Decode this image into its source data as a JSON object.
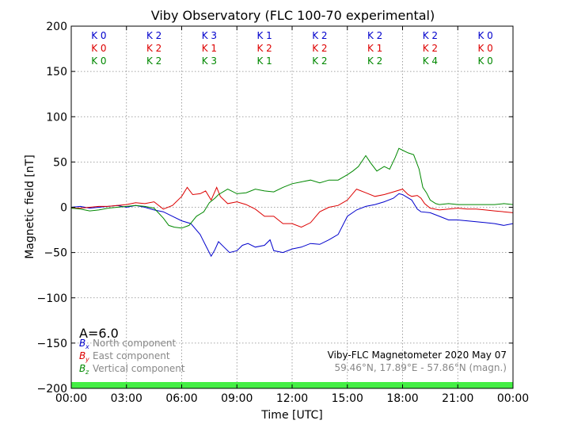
{
  "chart_data": {
    "type": "line",
    "title": "Viby Observatory (FLC 100-70 experimental)",
    "xlabel": "Time [UTC]",
    "ylabel": "Magnetic field [nT]",
    "xlim": [
      0,
      24
    ],
    "ylim": [
      -200,
      200
    ],
    "grid": true,
    "x_ticks": [
      {
        "value": 0,
        "label": "00:00"
      },
      {
        "value": 3,
        "label": "03:00"
      },
      {
        "value": 6,
        "label": "06:00"
      },
      {
        "value": 9,
        "label": "09:00"
      },
      {
        "value": 12,
        "label": "12:00"
      },
      {
        "value": 15,
        "label": "15:00"
      },
      {
        "value": 18,
        "label": "18:00"
      },
      {
        "value": 21,
        "label": "21:00"
      },
      {
        "value": 24,
        "label": "00:00"
      }
    ],
    "y_ticks": [
      {
        "value": 200,
        "label": "200"
      },
      {
        "value": 150,
        "label": "150"
      },
      {
        "value": 100,
        "label": "100"
      },
      {
        "value": 50,
        "label": "50"
      },
      {
        "value": 0,
        "label": "0"
      },
      {
        "value": -50,
        "label": "−50"
      },
      {
        "value": -100,
        "label": "−100"
      },
      {
        "value": -150,
        "label": "−150"
      },
      {
        "value": -200,
        "label": "−200"
      }
    ],
    "k_index_rows": [
      {
        "color": "#0000cc",
        "values": [
          "K 0",
          "K 2",
          "K 3",
          "K 1",
          "K 2",
          "K 2",
          "K 2",
          "K 0"
        ]
      },
      {
        "color": "#dd0000",
        "values": [
          "K 0",
          "K 2",
          "K 1",
          "K 2",
          "K 2",
          "K 1",
          "K 2",
          "K 0"
        ]
      },
      {
        "color": "#008800",
        "values": [
          "K 0",
          "K 2",
          "K 3",
          "K 1",
          "K 2",
          "K 2",
          "K 4",
          "K 0"
        ]
      }
    ],
    "a_index": "A=6.0",
    "legend": {
      "position": "bottom-left",
      "entries": [
        {
          "symbol": "B",
          "sub": "x",
          "text": "North component",
          "color": "#0000cc"
        },
        {
          "symbol": "B",
          "sub": "y",
          "text": "East component",
          "color": "#dd0000"
        },
        {
          "symbol": "B",
          "sub": "z",
          "text": "Vertical component",
          "color": "#008800"
        }
      ]
    },
    "annotation": {
      "line1": "Viby-FLC Magnetometer 2020 May 07",
      "line2": "59.46°N, 17.89°E - 57.86°N (magn.)"
    },
    "status_bar_color": "#44ee44",
    "series": [
      {
        "name": "North component",
        "color": "#0000cc",
        "points": [
          [
            0,
            0
          ],
          [
            0.5,
            1
          ],
          [
            1,
            -1
          ],
          [
            1.5,
            0
          ],
          [
            2,
            1
          ],
          [
            2.5,
            2
          ],
          [
            3,
            0
          ],
          [
            3.5,
            2
          ],
          [
            4,
            0
          ],
          [
            4.5,
            -3
          ],
          [
            5,
            -5
          ],
          [
            5.5,
            -10
          ],
          [
            6,
            -15
          ],
          [
            6.5,
            -18
          ],
          [
            7,
            -30
          ],
          [
            7.3,
            -42
          ],
          [
            7.6,
            -54
          ],
          [
            7.8,
            -47
          ],
          [
            8,
            -38
          ],
          [
            8.3,
            -44
          ],
          [
            8.6,
            -50
          ],
          [
            9,
            -48
          ],
          [
            9.3,
            -42
          ],
          [
            9.6,
            -40
          ],
          [
            10,
            -44
          ],
          [
            10.5,
            -42
          ],
          [
            10.8,
            -36
          ],
          [
            11,
            -48
          ],
          [
            11.5,
            -50
          ],
          [
            12,
            -46
          ],
          [
            12.5,
            -44
          ],
          [
            13,
            -40
          ],
          [
            13.5,
            -41
          ],
          [
            14,
            -36
          ],
          [
            14.5,
            -30
          ],
          [
            15,
            -10
          ],
          [
            15.5,
            -3
          ],
          [
            16,
            1
          ],
          [
            16.5,
            3
          ],
          [
            17,
            6
          ],
          [
            17.5,
            10
          ],
          [
            17.8,
            15
          ],
          [
            18,
            14
          ],
          [
            18.5,
            8
          ],
          [
            18.8,
            -2
          ],
          [
            19,
            -5
          ],
          [
            19.5,
            -6
          ],
          [
            20,
            -10
          ],
          [
            20.5,
            -14
          ],
          [
            21,
            -14
          ],
          [
            21.5,
            -15
          ],
          [
            22,
            -16
          ],
          [
            22.5,
            -17
          ],
          [
            23,
            -18
          ],
          [
            23.5,
            -20
          ],
          [
            24,
            -18
          ]
        ]
      },
      {
        "name": "East component",
        "color": "#dd0000",
        "points": [
          [
            0,
            -1
          ],
          [
            0.5,
            -1
          ],
          [
            1,
            0
          ],
          [
            1.5,
            1
          ],
          [
            2,
            1
          ],
          [
            2.5,
            2
          ],
          [
            3,
            3
          ],
          [
            3.5,
            5
          ],
          [
            4,
            4
          ],
          [
            4.5,
            6
          ],
          [
            5,
            -2
          ],
          [
            5.5,
            2
          ],
          [
            6,
            12
          ],
          [
            6.3,
            22
          ],
          [
            6.6,
            14
          ],
          [
            7,
            15
          ],
          [
            7.3,
            18
          ],
          [
            7.6,
            8
          ],
          [
            7.9,
            22
          ],
          [
            8.1,
            12
          ],
          [
            8.5,
            4
          ],
          [
            9,
            6
          ],
          [
            9.5,
            3
          ],
          [
            10,
            -2
          ],
          [
            10.5,
            -10
          ],
          [
            11,
            -10
          ],
          [
            11.5,
            -18
          ],
          [
            12,
            -18
          ],
          [
            12.5,
            -22
          ],
          [
            13,
            -17
          ],
          [
            13.5,
            -5
          ],
          [
            14,
            0
          ],
          [
            14.5,
            2
          ],
          [
            15,
            8
          ],
          [
            15.5,
            20
          ],
          [
            16,
            16
          ],
          [
            16.5,
            12
          ],
          [
            17,
            14
          ],
          [
            17.5,
            17
          ],
          [
            18,
            20
          ],
          [
            18.3,
            14
          ],
          [
            18.5,
            12
          ],
          [
            18.8,
            13
          ],
          [
            19,
            10
          ],
          [
            19.2,
            4
          ],
          [
            19.5,
            -1
          ],
          [
            20,
            -3
          ],
          [
            20.5,
            -2
          ],
          [
            21,
            -1
          ],
          [
            21.5,
            -2
          ],
          [
            22,
            -2
          ],
          [
            22.5,
            -3
          ],
          [
            23,
            -4
          ],
          [
            23.5,
            -5
          ],
          [
            24,
            -6
          ]
        ]
      },
      {
        "name": "Vertical component",
        "color": "#008800",
        "points": [
          [
            0,
            -1
          ],
          [
            0.5,
            -2
          ],
          [
            1,
            -4
          ],
          [
            1.5,
            -3
          ],
          [
            2,
            -1
          ],
          [
            2.5,
            0
          ],
          [
            3,
            1
          ],
          [
            3.5,
            2
          ],
          [
            4,
            1
          ],
          [
            4.5,
            -1
          ],
          [
            5,
            -12
          ],
          [
            5.3,
            -20
          ],
          [
            5.6,
            -22
          ],
          [
            6,
            -23
          ],
          [
            6.4,
            -20
          ],
          [
            6.8,
            -10
          ],
          [
            7.2,
            -5
          ],
          [
            7.5,
            5
          ],
          [
            7.8,
            10
          ],
          [
            8,
            14
          ],
          [
            8.5,
            20
          ],
          [
            9,
            15
          ],
          [
            9.5,
            16
          ],
          [
            10,
            20
          ],
          [
            10.5,
            18
          ],
          [
            11,
            17
          ],
          [
            11.5,
            22
          ],
          [
            12,
            26
          ],
          [
            12.5,
            28
          ],
          [
            13,
            30
          ],
          [
            13.5,
            27
          ],
          [
            14,
            30
          ],
          [
            14.5,
            30
          ],
          [
            15,
            36
          ],
          [
            15.3,
            40
          ],
          [
            15.6,
            45
          ],
          [
            16,
            57
          ],
          [
            16.3,
            48
          ],
          [
            16.6,
            40
          ],
          [
            17,
            45
          ],
          [
            17.3,
            42
          ],
          [
            17.6,
            55
          ],
          [
            17.8,
            65
          ],
          [
            18,
            63
          ],
          [
            18.3,
            60
          ],
          [
            18.6,
            58
          ],
          [
            18.9,
            42
          ],
          [
            19.1,
            22
          ],
          [
            19.3,
            16
          ],
          [
            19.5,
            8
          ],
          [
            19.8,
            4
          ],
          [
            20,
            3
          ],
          [
            20.5,
            4
          ],
          [
            21,
            3
          ],
          [
            21.5,
            3
          ],
          [
            22,
            3
          ],
          [
            22.5,
            3
          ],
          [
            23,
            3
          ],
          [
            23.5,
            4
          ],
          [
            24,
            3
          ]
        ]
      }
    ]
  }
}
